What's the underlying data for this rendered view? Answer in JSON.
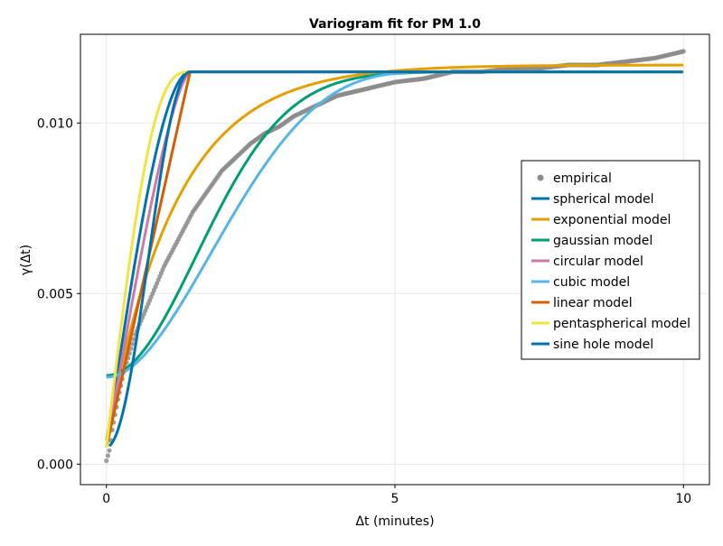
{
  "chart_data": {
    "type": "line",
    "title": "Variogram fit for PM 1.0",
    "xlabel": "Δt (minutes)",
    "ylabel": "γ(Δt)",
    "xlim": [
      -0.45,
      10.45
    ],
    "ylim": [
      -0.0006,
      0.0126
    ],
    "xticks": [
      0,
      5,
      10
    ],
    "xtick_labels": [
      "0",
      "5",
      "10"
    ],
    "yticks": [
      0.0,
      0.005,
      0.01
    ],
    "ytick_labels": [
      "0.000",
      "0.005",
      "0.010"
    ],
    "grid": true,
    "legend_position": "right",
    "model_params": {
      "nugget": 0.0005,
      "sill": 0.0115,
      "range_short": 1.45,
      "range_long": 6.0
    },
    "empirical": {
      "name": "empirical",
      "color": "#8c8c8c",
      "x": [
        0.0,
        0.05,
        0.1,
        0.2,
        0.3,
        0.5,
        0.75,
        1.0,
        1.25,
        1.5,
        1.75,
        2.0,
        2.25,
        2.5,
        2.75,
        3.0,
        3.25,
        3.5,
        3.75,
        4.0,
        4.25,
        4.5,
        4.75,
        5.0,
        5.5,
        6.0,
        6.5,
        7.0,
        7.5,
        8.0,
        8.5,
        9.0,
        9.5,
        10.0
      ],
      "y": [
        0.0001,
        0.0004,
        0.001,
        0.0019,
        0.0027,
        0.0038,
        0.0048,
        0.0058,
        0.0066,
        0.0074,
        0.008,
        0.0086,
        0.009,
        0.0094,
        0.0097,
        0.0099,
        0.0102,
        0.0104,
        0.0106,
        0.0108,
        0.0109,
        0.011,
        0.0111,
        0.0112,
        0.0113,
        0.0115,
        0.0115,
        0.0116,
        0.0116,
        0.0117,
        0.0117,
        0.0118,
        0.0119,
        0.0121
      ]
    },
    "series": [
      {
        "name": "spherical model",
        "color": "#0072b2"
      },
      {
        "name": "exponential model",
        "color": "#e69f00"
      },
      {
        "name": "gaussian model",
        "color": "#009e73"
      },
      {
        "name": "circular model",
        "color": "#cc79a7"
      },
      {
        "name": "cubic model",
        "color": "#56b4e9"
      },
      {
        "name": "linear model",
        "color": "#d55e00"
      },
      {
        "name": "pentaspherical model",
        "color": "#f0e442"
      },
      {
        "name": "sine hole model",
        "color": "#0072b2"
      }
    ]
  }
}
